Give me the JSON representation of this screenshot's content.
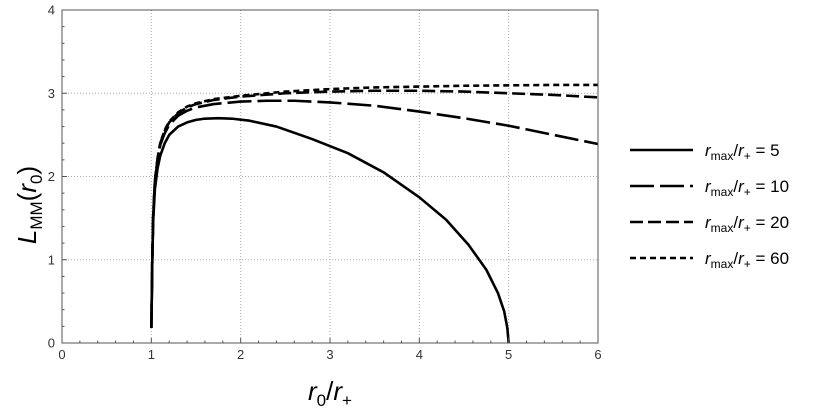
{
  "chart_data": {
    "type": "line",
    "xlim": [
      0,
      6
    ],
    "ylim": [
      0,
      4
    ],
    "x_ticks": [
      "0",
      "1",
      "2",
      "3",
      "4",
      "5",
      "6"
    ],
    "y_ticks": [
      "0",
      "1",
      "2",
      "3",
      "4"
    ],
    "grid": true,
    "legend_position": "right",
    "axis_labels": {
      "x": {
        "main": "r",
        "sub": "0",
        "sep": "/",
        "main2": "r",
        "sub2": "+"
      },
      "y": {
        "main": "L",
        "sub": "MM",
        "open": "(",
        "arg": "r",
        "argsub": "0",
        "close": ")"
      }
    },
    "series": [
      {
        "legend": {
          "main": "r",
          "sub": "max",
          "sep": "/",
          "main2": "r",
          "sub2": "+",
          "eq": " = ",
          "value": "5"
        },
        "dash": "solid",
        "x": [
          1.0,
          1.005,
          1.01,
          1.02,
          1.04,
          1.07,
          1.1,
          1.15,
          1.2,
          1.3,
          1.4,
          1.5,
          1.6,
          1.75,
          1.9,
          2.1,
          2.4,
          2.8,
          3.2,
          3.6,
          4.0,
          4.3,
          4.55,
          4.75,
          4.88,
          4.95,
          4.985,
          5.0
        ],
        "y": [
          0.18,
          0.55,
          0.95,
          1.45,
          1.85,
          2.1,
          2.25,
          2.4,
          2.5,
          2.6,
          2.65,
          2.68,
          2.695,
          2.7,
          2.695,
          2.67,
          2.6,
          2.45,
          2.28,
          2.05,
          1.75,
          1.48,
          1.18,
          0.88,
          0.6,
          0.38,
          0.18,
          0.0
        ]
      },
      {
        "legend": {
          "main": "r",
          "sub": "max",
          "sep": "/",
          "main2": "r",
          "sub2": "+",
          "eq": " = ",
          "value": "10"
        },
        "dash": "long",
        "x": [
          1.0,
          1.005,
          1.01,
          1.02,
          1.04,
          1.07,
          1.1,
          1.15,
          1.2,
          1.3,
          1.4,
          1.5,
          1.7,
          2.0,
          2.3,
          2.6,
          3.0,
          3.5,
          4.0,
          4.5,
          5.0,
          5.5,
          6.0
        ],
        "y": [
          0.18,
          0.55,
          0.95,
          1.5,
          1.95,
          2.2,
          2.38,
          2.52,
          2.62,
          2.73,
          2.79,
          2.83,
          2.87,
          2.9,
          2.91,
          2.91,
          2.89,
          2.85,
          2.78,
          2.7,
          2.61,
          2.5,
          2.39
        ]
      },
      {
        "legend": {
          "main": "r",
          "sub": "max",
          "sep": "/",
          "main2": "r",
          "sub2": "+",
          "eq": " = ",
          "value": "20"
        },
        "dash": "medium",
        "x": [
          1.0,
          1.005,
          1.01,
          1.02,
          1.04,
          1.07,
          1.1,
          1.15,
          1.2,
          1.3,
          1.4,
          1.5,
          1.7,
          2.0,
          2.5,
          3.0,
          3.5,
          4.0,
          4.5,
          5.0,
          5.5,
          6.0
        ],
        "y": [
          0.18,
          0.55,
          0.95,
          1.5,
          1.95,
          2.22,
          2.4,
          2.55,
          2.65,
          2.76,
          2.83,
          2.87,
          2.92,
          2.96,
          3.0,
          3.02,
          3.03,
          3.03,
          3.02,
          3.0,
          2.98,
          2.95
        ]
      },
      {
        "legend": {
          "main": "r",
          "sub": "max",
          "sep": "/",
          "main2": "r",
          "sub2": "+",
          "eq": " = ",
          "value": "60"
        },
        "dash": "short",
        "x": [
          1.0,
          1.005,
          1.01,
          1.02,
          1.04,
          1.07,
          1.1,
          1.15,
          1.2,
          1.3,
          1.4,
          1.5,
          1.7,
          2.0,
          2.5,
          3.0,
          3.5,
          4.0,
          4.5,
          5.0,
          5.5,
          6.0
        ],
        "y": [
          0.18,
          0.55,
          0.95,
          1.5,
          1.95,
          2.22,
          2.4,
          2.56,
          2.66,
          2.77,
          2.84,
          2.88,
          2.93,
          2.97,
          3.02,
          3.05,
          3.07,
          3.08,
          3.09,
          3.095,
          3.1,
          3.1
        ]
      }
    ]
  }
}
